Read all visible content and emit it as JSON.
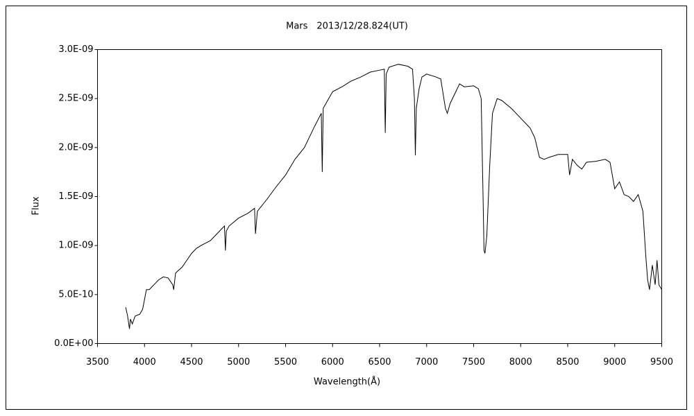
{
  "chart_data": {
    "type": "line",
    "title": "Mars　2013/12/28.824(UT)",
    "x_label": "Wavelength(Å)",
    "y_label": "Flux",
    "color": "#000000",
    "grid": false,
    "xlim": [
      3500,
      9500
    ],
    "xticks": [
      3500,
      4000,
      4500,
      5000,
      5500,
      6000,
      6500,
      7000,
      7500,
      8000,
      8500,
      9000,
      9500
    ],
    "ylim": [
      0,
      3e-09
    ],
    "yticks": [
      {
        "value": 0,
        "label": "0.0E+00"
      },
      {
        "value": 5e-10,
        "label": "5.0E-10"
      },
      {
        "value": 1e-09,
        "label": "1.0E-09"
      },
      {
        "value": 1.5e-09,
        "label": "1.5E-09"
      },
      {
        "value": 2e-09,
        "label": "2.0E-09"
      },
      {
        "value": 2.5e-09,
        "label": "2.5E-09"
      },
      {
        "value": 3e-09,
        "label": "3.0E-09"
      }
    ],
    "x": [
      3800,
      3820,
      3840,
      3850,
      3870,
      3900,
      3950,
      3980,
      4000,
      4020,
      4050,
      4100,
      4150,
      4200,
      4250,
      4300,
      4310,
      4330,
      4400,
      4450,
      4500,
      4550,
      4600,
      4700,
      4800,
      4850,
      4860,
      4870,
      4900,
      5000,
      5100,
      5170,
      5180,
      5200,
      5300,
      5400,
      5500,
      5600,
      5700,
      5800,
      5880,
      5890,
      5900,
      6000,
      6100,
      6200,
      6300,
      6400,
      6500,
      6550,
      6560,
      6570,
      6600,
      6700,
      6800,
      6850,
      6870,
      6880,
      6890,
      6920,
      6950,
      7000,
      7100,
      7150,
      7200,
      7220,
      7250,
      7300,
      7350,
      7400,
      7500,
      7550,
      7580,
      7600,
      7610,
      7620,
      7640,
      7670,
      7700,
      7750,
      7800,
      7900,
      8000,
      8100,
      8150,
      8200,
      8250,
      8300,
      8400,
      8500,
      8520,
      8550,
      8600,
      8650,
      8700,
      8800,
      8900,
      8950,
      9000,
      9050,
      9100,
      9150,
      9200,
      9250,
      9300,
      9330,
      9350,
      9370,
      9400,
      9430,
      9450,
      9470,
      9500
    ],
    "values": [
      3.7e-10,
      2.8e-10,
      1.5e-10,
      2.5e-10,
      2e-10,
      2.8e-10,
      3e-10,
      3.5e-10,
      4.5e-10,
      5.5e-10,
      5.5e-10,
      6e-10,
      6.5e-10,
      6.8e-10,
      6.7e-10,
      6e-10,
      5.5e-10,
      7.2e-10,
      7.8e-10,
      8.5e-10,
      9.2e-10,
      9.7e-10,
      1e-09,
      1.05e-09,
      1.15e-09,
      1.2e-09,
      9.5e-10,
      1.15e-09,
      1.2e-09,
      1.28e-09,
      1.33e-09,
      1.38e-09,
      1.12e-09,
      1.35e-09,
      1.47e-09,
      1.6e-09,
      1.72e-09,
      1.88e-09,
      2e-09,
      2.2e-09,
      2.35e-09,
      1.75e-09,
      2.4e-09,
      2.57e-09,
      2.62e-09,
      2.68e-09,
      2.72e-09,
      2.77e-09,
      2.79e-09,
      2.8e-09,
      2.15e-09,
      2.75e-09,
      2.82e-09,
      2.85e-09,
      2.83e-09,
      2.8e-09,
      2.5e-09,
      1.92e-09,
      2.4e-09,
      2.6e-09,
      2.72e-09,
      2.75e-09,
      2.72e-09,
      2.7e-09,
      2.4e-09,
      2.35e-09,
      2.45e-09,
      2.55e-09,
      2.65e-09,
      2.62e-09,
      2.63e-09,
      2.6e-09,
      2.5e-09,
      1.5e-09,
      9.5e-10,
      9.2e-10,
      1.1e-09,
      1.8e-09,
      2.35e-09,
      2.5e-09,
      2.48e-09,
      2.4e-09,
      2.3e-09,
      2.2e-09,
      2.1e-09,
      1.9e-09,
      1.88e-09,
      1.9e-09,
      1.93e-09,
      1.93e-09,
      1.72e-09,
      1.88e-09,
      1.82e-09,
      1.78e-09,
      1.85e-09,
      1.86e-09,
      1.88e-09,
      1.85e-09,
      1.58e-09,
      1.65e-09,
      1.52e-09,
      1.5e-09,
      1.45e-09,
      1.52e-09,
      1.35e-09,
      9e-10,
      6.5e-10,
      5.5e-10,
      8e-10,
      6e-10,
      8.5e-10,
      6e-10,
      5.5e-10
    ]
  }
}
